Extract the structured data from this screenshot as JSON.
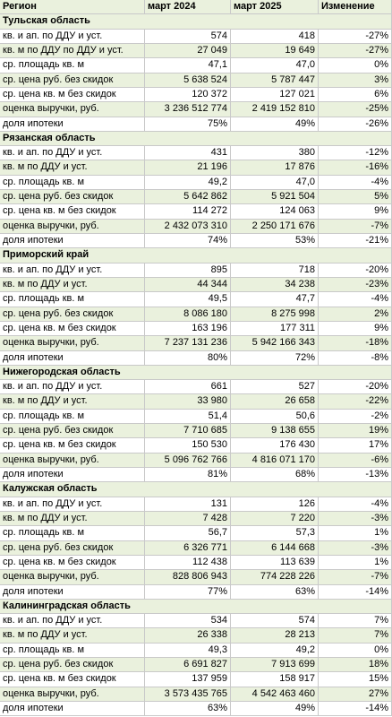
{
  "table": {
    "header": [
      "Регион",
      "март 2024",
      "март 2025",
      "Изменение"
    ],
    "regions": [
      {
        "name": "Тульская область",
        "rows": [
          [
            "кв. и ап. по ДДУ и уст.",
            "574",
            "418",
            "-27%"
          ],
          [
            "кв. м по ДДУ по ДДУ и уст.",
            "27 049",
            "19 649",
            "-27%"
          ],
          [
            "ср. площадь кв. м",
            "47,1",
            "47,0",
            "0%"
          ],
          [
            "ср. цена руб. без скидок",
            "5 638 524",
            "5 787 447",
            "3%"
          ],
          [
            "ср. цена кв. м без скидок",
            "120 372",
            "127 021",
            "6%"
          ],
          [
            "оценка выручки, руб.",
            "3 236 512 774",
            "2 419 152 810",
            "-25%"
          ],
          [
            "доля ипотеки",
            "75%",
            "49%",
            "-26%"
          ]
        ]
      },
      {
        "name": "Рязанская область",
        "rows": [
          [
            "кв. и ап. по ДДУ и уст.",
            "431",
            "380",
            "-12%"
          ],
          [
            "кв. м по ДДУ и уст.",
            "21 196",
            "17 876",
            "-16%"
          ],
          [
            "ср. площадь кв. м",
            "49,2",
            "47,0",
            "-4%"
          ],
          [
            "ср. цена руб. без скидок",
            "5 642 862",
            "5 921 504",
            "5%"
          ],
          [
            "ср. цена кв. м без скидок",
            "114 272",
            "124 063",
            "9%"
          ],
          [
            "оценка выручки, руб.",
            "2 432 073 310",
            "2 250 171 676",
            "-7%"
          ],
          [
            "доля ипотеки",
            "74%",
            "53%",
            "-21%"
          ]
        ]
      },
      {
        "name": "Приморский край",
        "rows": [
          [
            "кв. и ап. по ДДУ и уст.",
            "895",
            "718",
            "-20%"
          ],
          [
            "кв. м по ДДУ и уст.",
            "44 344",
            "34 238",
            "-23%"
          ],
          [
            "ср. площадь кв. м",
            "49,5",
            "47,7",
            "-4%"
          ],
          [
            "ср. цена руб. без скидок",
            "8 086 180",
            "8 275 998",
            "2%"
          ],
          [
            "ср. цена кв. м без скидок",
            "163 196",
            "177 311",
            "9%"
          ],
          [
            "оценка выручки, руб.",
            "7 237 131 236",
            "5 942 166 343",
            "-18%"
          ],
          [
            "доля ипотеки",
            "80%",
            "72%",
            "-8%"
          ]
        ]
      },
      {
        "name": "Нижегородская область",
        "rows": [
          [
            "кв. и ап. по ДДУ и уст.",
            "661",
            "527",
            "-20%"
          ],
          [
            "кв. м по ДДУ и уст.",
            "33 980",
            "26 658",
            "-22%"
          ],
          [
            "ср. площадь кв. м",
            "51,4",
            "50,6",
            "-2%"
          ],
          [
            "ср. цена руб. без скидок",
            "7 710 685",
            "9 138 655",
            "19%"
          ],
          [
            "ср. цена кв. м без скидок",
            "150 530",
            "176 430",
            "17%"
          ],
          [
            "оценка выручки, руб.",
            "5 096 762 766",
            "4 816 071 170",
            "-6%"
          ],
          [
            "доля ипотеки",
            "81%",
            "68%",
            "-13%"
          ]
        ]
      },
      {
        "name": "Калужская область",
        "rows": [
          [
            "кв. и ап. по ДДУ и уст.",
            "131",
            "126",
            "-4%"
          ],
          [
            "кв. м по ДДУ и уст.",
            "7 428",
            "7 220",
            "-3%"
          ],
          [
            "ср. площадь кв. м",
            "56,7",
            "57,3",
            "1%"
          ],
          [
            "ср. цена руб. без скидок",
            "6 326 771",
            "6 144 668",
            "-3%"
          ],
          [
            "ср. цена кв. м без скидок",
            "112 438",
            "113 639",
            "1%"
          ],
          [
            "оценка выручки, руб.",
            "828 806 943",
            "774 228 226",
            "-7%"
          ],
          [
            "доля ипотеки",
            "77%",
            "63%",
            "-14%"
          ]
        ]
      },
      {
        "name": "Калининградская область",
        "rows": [
          [
            "кв. и ап. по ДДУ и уст.",
            "534",
            "574",
            "7%"
          ],
          [
            "кв. м по ДДУ и уст.",
            "26 338",
            "28 213",
            "7%"
          ],
          [
            "ср. площадь кв. м",
            "49,3",
            "49,2",
            "0%"
          ],
          [
            "ср. цена руб. без скидок",
            "6 691 827",
            "7 913 699",
            "18%"
          ],
          [
            "ср. цена кв. м без скидок",
            "137 959",
            "158 917",
            "15%"
          ],
          [
            "оценка выручки, руб.",
            "3 573 435 765",
            "4 542 463 460",
            "27%"
          ],
          [
            "доля ипотеки",
            "63%",
            "49%",
            "-14%"
          ]
        ]
      }
    ]
  }
}
